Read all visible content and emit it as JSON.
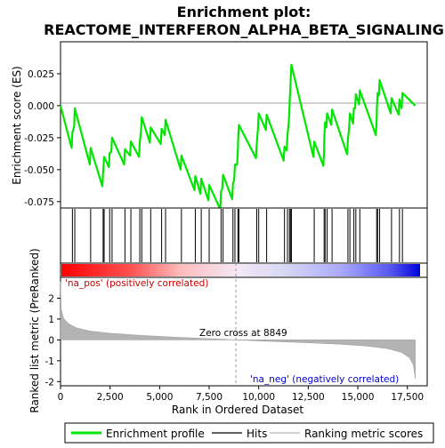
{
  "chart_data": {
    "type": "line",
    "title_line1": "Enrichment plot:",
    "title_line2": "REACTOME_INTERFERON_ALPHA_BETA_SIGNALING",
    "xlabel": "Rank in Ordered Dataset",
    "ylabel_top": "Enrichment score (ES)",
    "ylabel_bottom": "Ranked list metric (PreRanked)",
    "x_range": [
      0,
      18500
    ],
    "x_ticks": [
      "0",
      "2,500",
      "5,000",
      "7,500",
      "10,000",
      "12,500",
      "15,000",
      "17,500"
    ],
    "x_tick_values": [
      0,
      2500,
      5000,
      7500,
      10000,
      12500,
      15000,
      17500
    ],
    "es_ylim": [
      -0.08,
      0.05
    ],
    "es_ticks": [
      "0.025",
      "0.000",
      "-0.025",
      "-0.050",
      "-0.075"
    ],
    "es_tick_values": [
      0.025,
      0.0,
      -0.025,
      -0.05,
      -0.075
    ],
    "metric_ylim": [
      -2.2,
      3.0
    ],
    "metric_ticks": [
      "2",
      "1",
      "0",
      "-1",
      "-2"
    ],
    "metric_tick_values": [
      2,
      1,
      0,
      -1,
      -2
    ],
    "zero_cross_label": "Zero cross at 8849",
    "zero_cross": 8849,
    "pos_label": "'na_pos' (positively correlated)",
    "neg_label": "'na_neg' (negatively correlated)",
    "n_genes": 17900,
    "hits": [
      600,
      720,
      1520,
      2150,
      2200,
      2480,
      2600,
      3250,
      3550,
      4000,
      4100,
      4550,
      5100,
      5300,
      6100,
      6800,
      7100,
      7500,
      8100,
      8200,
      8700,
      8800,
      8950,
      9000,
      9900,
      10000,
      10400,
      11300,
      11450,
      11550,
      11600,
      11650,
      12800,
      13300,
      13350,
      13450,
      13700,
      14500,
      14600,
      14800,
      14900,
      15100,
      15950,
      16000,
      16100,
      16700,
      17100,
      17250
    ],
    "es_curve": [
      [
        0,
        0.0
      ],
      [
        560,
        -0.033
      ],
      [
        600,
        -0.021
      ],
      [
        690,
        -0.016
      ],
      [
        720,
        -0.002
      ],
      [
        1480,
        -0.046
      ],
      [
        1520,
        -0.033
      ],
      [
        2110,
        -0.063
      ],
      [
        2150,
        -0.052
      ],
      [
        2200,
        -0.04
      ],
      [
        2440,
        -0.048
      ],
      [
        2480,
        -0.037
      ],
      [
        2560,
        -0.036
      ],
      [
        2600,
        -0.025
      ],
      [
        3210,
        -0.046
      ],
      [
        3250,
        -0.034
      ],
      [
        3510,
        -0.039
      ],
      [
        3550,
        -0.028
      ],
      [
        3960,
        -0.04
      ],
      [
        4000,
        -0.028
      ],
      [
        4060,
        -0.02
      ],
      [
        4100,
        -0.009
      ],
      [
        4510,
        -0.029
      ],
      [
        4550,
        -0.017
      ],
      [
        5060,
        -0.03
      ],
      [
        5100,
        -0.018
      ],
      [
        5260,
        -0.023
      ],
      [
        5300,
        -0.011
      ],
      [
        6060,
        -0.05
      ],
      [
        6100,
        -0.039
      ],
      [
        6760,
        -0.066
      ],
      [
        6800,
        -0.055
      ],
      [
        7060,
        -0.069
      ],
      [
        7100,
        -0.057
      ],
      [
        7460,
        -0.074
      ],
      [
        7500,
        -0.062
      ],
      [
        8060,
        -0.081
      ],
      [
        8100,
        -0.067
      ],
      [
        8160,
        -0.065
      ],
      [
        8200,
        -0.054
      ],
      [
        8660,
        -0.073
      ],
      [
        8700,
        -0.061
      ],
      [
        8760,
        -0.058
      ],
      [
        8800,
        -0.046
      ],
      [
        8910,
        -0.046
      ],
      [
        8950,
        -0.034
      ],
      [
        8960,
        -0.027
      ],
      [
        9000,
        -0.015
      ],
      [
        9860,
        -0.041
      ],
      [
        9900,
        -0.03
      ],
      [
        9960,
        -0.018
      ],
      [
        10000,
        -0.006
      ],
      [
        10360,
        -0.019
      ],
      [
        10400,
        -0.007
      ],
      [
        11260,
        -0.043
      ],
      [
        11300,
        -0.032
      ],
      [
        11410,
        -0.035
      ],
      [
        11450,
        -0.023
      ],
      [
        11510,
        -0.014
      ],
      [
        11550,
        -0.003
      ],
      [
        11560,
        0.003
      ],
      [
        11600,
        0.015
      ],
      [
        11610,
        0.02
      ],
      [
        11650,
        0.032
      ],
      [
        12760,
        -0.04
      ],
      [
        12800,
        -0.028
      ],
      [
        13260,
        -0.047
      ],
      [
        13300,
        -0.035
      ],
      [
        13310,
        -0.024
      ],
      [
        13350,
        -0.013
      ],
      [
        13410,
        -0.017
      ],
      [
        13450,
        -0.006
      ],
      [
        13660,
        -0.015
      ],
      [
        13700,
        -0.003
      ],
      [
        14460,
        -0.038
      ],
      [
        14500,
        -0.026
      ],
      [
        14560,
        -0.018
      ],
      [
        14600,
        -0.006
      ],
      [
        14760,
        -0.014
      ],
      [
        14800,
        -0.002
      ],
      [
        14860,
        -0.002
      ],
      [
        14900,
        0.009
      ],
      [
        15060,
        0.001
      ],
      [
        15100,
        0.012
      ],
      [
        15910,
        -0.023
      ],
      [
        15950,
        -0.011
      ],
      [
        15960,
        -0.002
      ],
      [
        16000,
        0.01
      ],
      [
        16060,
        0.008
      ],
      [
        16100,
        0.02
      ],
      [
        16660,
        -0.006
      ],
      [
        16700,
        0.006
      ],
      [
        17060,
        -0.007
      ],
      [
        17100,
        0.005
      ],
      [
        17210,
        -0.002
      ],
      [
        17250,
        0.01
      ],
      [
        17900,
        0.0
      ]
    ],
    "metric_curve": [
      [
        0,
        2.8
      ],
      [
        30,
        1.5
      ],
      [
        150,
        1.05
      ],
      [
        400,
        0.78
      ],
      [
        800,
        0.58
      ],
      [
        1500,
        0.42
      ],
      [
        2500,
        0.32
      ],
      [
        4000,
        0.22
      ],
      [
        6000,
        0.12
      ],
      [
        7500,
        0.06
      ],
      [
        8849,
        0.0
      ],
      [
        10000,
        -0.05
      ],
      [
        12000,
        -0.12
      ],
      [
        14000,
        -0.2
      ],
      [
        15500,
        -0.3
      ],
      [
        16500,
        -0.42
      ],
      [
        17200,
        -0.6
      ],
      [
        17600,
        -0.85
      ],
      [
        17800,
        -1.2
      ],
      [
        17900,
        -1.85
      ]
    ],
    "colors": {
      "es_line": "#00e600",
      "hit_line": "#000000",
      "metric_fill": "#b3b3b3",
      "zero_cross_line": "#999999",
      "pos_label": "#cc0000",
      "neg_label": "#0000cc",
      "bar_red": "#ff0000",
      "bar_blue": "#0000ff",
      "axis": "#000000"
    },
    "legend": [
      {
        "label": "Enrichment profile",
        "color": "#00e600",
        "style": "thick-line"
      },
      {
        "label": "Hits",
        "color": "#000000",
        "style": "thin-line"
      },
      {
        "label": "Ranking metric scores",
        "color": "#b3b3b3",
        "style": "thin-line"
      }
    ]
  }
}
